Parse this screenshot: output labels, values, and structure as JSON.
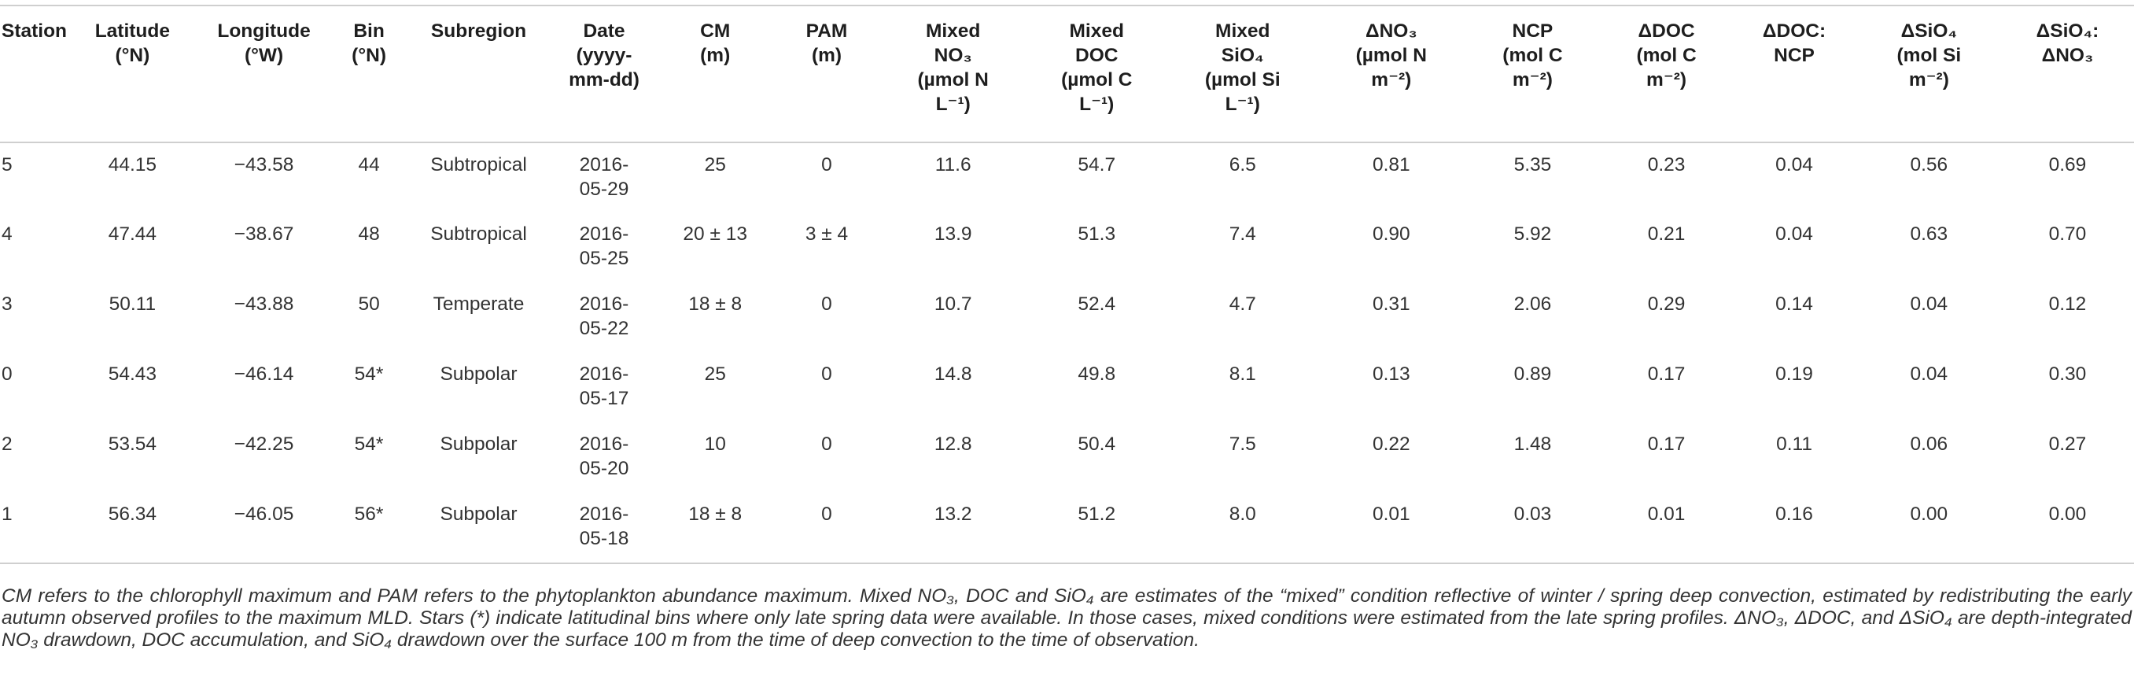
{
  "table": {
    "columns": [
      {
        "l1": "Station",
        "l2": "",
        "l3": "",
        "l4": "",
        "align": "left"
      },
      {
        "l1": "Latitude",
        "l2": "(°N)",
        "l3": "",
        "l4": ""
      },
      {
        "l1": "Longitude",
        "l2": "(°W)",
        "l3": "",
        "l4": ""
      },
      {
        "l1": "Bin",
        "l2": "(°N)",
        "l3": "",
        "l4": ""
      },
      {
        "l1": "Subregion",
        "l2": "",
        "l3": "",
        "l4": ""
      },
      {
        "l1": "Date",
        "l2": "(yyyy-",
        "l3": "mm-dd)",
        "l4": ""
      },
      {
        "l1": "CM",
        "l2": "(m)",
        "l3": "",
        "l4": ""
      },
      {
        "l1": "PAM",
        "l2": "(m)",
        "l3": "",
        "l4": ""
      },
      {
        "l1": "Mixed",
        "l2": "NO₃",
        "l3": "(µmol N",
        "l4": "L⁻¹)"
      },
      {
        "l1": "Mixed",
        "l2": "DOC",
        "l3": "(µmol C",
        "l4": "L⁻¹)"
      },
      {
        "l1": "Mixed",
        "l2": "SiO₄",
        "l3": "(µmol Si",
        "l4": "L⁻¹)"
      },
      {
        "l1": "ΔNO₃",
        "l2": "(µmol N",
        "l3": "m⁻²)",
        "l4": ""
      },
      {
        "l1": "NCP",
        "l2": "(mol C",
        "l3": "m⁻²)",
        "l4": ""
      },
      {
        "l1": "ΔDOC",
        "l2": "(mol C",
        "l3": "m⁻²)",
        "l4": ""
      },
      {
        "l1": "ΔDOC:",
        "l2": "NCP",
        "l3": "",
        "l4": ""
      },
      {
        "l1": "ΔSiO₄",
        "l2": "(mol Si",
        "l3": "m⁻²)",
        "l4": ""
      },
      {
        "l1": "ΔSiO₄:",
        "l2": "ΔNO₃",
        "l3": "",
        "l4": ""
      }
    ],
    "rows": [
      {
        "station": "5",
        "lat": "44.15",
        "lon": "−43.58",
        "bin": "44",
        "subregion": "Subtropical",
        "date1": "2016-",
        "date2": "05-29",
        "cm": "25",
        "pam": "0",
        "mixed_no3": "11.6",
        "mixed_doc": "54.7",
        "mixed_sio4": "6.5",
        "d_no3": "0.81",
        "ncp": "5.35",
        "d_doc": "0.23",
        "doc_ncp": "0.04",
        "d_sio4": "0.56",
        "sio4_no3": "0.69"
      },
      {
        "station": "4",
        "lat": "47.44",
        "lon": "−38.67",
        "bin": "48",
        "subregion": "Subtropical",
        "date1": "2016-",
        "date2": "05-25",
        "cm": "20 ± 13",
        "pam": "3 ± 4",
        "mixed_no3": "13.9",
        "mixed_doc": "51.3",
        "mixed_sio4": "7.4",
        "d_no3": "0.90",
        "ncp": "5.92",
        "d_doc": "0.21",
        "doc_ncp": "0.04",
        "d_sio4": "0.63",
        "sio4_no3": "0.70"
      },
      {
        "station": "3",
        "lat": "50.11",
        "lon": "−43.88",
        "bin": "50",
        "subregion": "Temperate",
        "date1": "2016-",
        "date2": "05-22",
        "cm": "18 ± 8",
        "pam": "0",
        "mixed_no3": "10.7",
        "mixed_doc": "52.4",
        "mixed_sio4": "4.7",
        "d_no3": "0.31",
        "ncp": "2.06",
        "d_doc": "0.29",
        "doc_ncp": "0.14",
        "d_sio4": "0.04",
        "sio4_no3": "0.12"
      },
      {
        "station": "0",
        "lat": "54.43",
        "lon": "−46.14",
        "bin": "54*",
        "subregion": "Subpolar",
        "date1": "2016-",
        "date2": "05-17",
        "cm": "25",
        "pam": "0",
        "mixed_no3": "14.8",
        "mixed_doc": "49.8",
        "mixed_sio4": "8.1",
        "d_no3": "0.13",
        "ncp": "0.89",
        "d_doc": "0.17",
        "doc_ncp": "0.19",
        "d_sio4": "0.04",
        "sio4_no3": "0.30"
      },
      {
        "station": "2",
        "lat": "53.54",
        "lon": "−42.25",
        "bin": "54*",
        "subregion": "Subpolar",
        "date1": "2016-",
        "date2": "05-20",
        "cm": "10",
        "pam": "0",
        "mixed_no3": "12.8",
        "mixed_doc": "50.4",
        "mixed_sio4": "7.5",
        "d_no3": "0.22",
        "ncp": "1.48",
        "d_doc": "0.17",
        "doc_ncp": "0.11",
        "d_sio4": "0.06",
        "sio4_no3": "0.27"
      },
      {
        "station": "1",
        "lat": "56.34",
        "lon": "−46.05",
        "bin": "56*",
        "subregion": "Subpolar",
        "date1": "2016-",
        "date2": "05-18",
        "cm": "18 ± 8",
        "pam": "0",
        "mixed_no3": "13.2",
        "mixed_doc": "51.2",
        "mixed_sio4": "8.0",
        "d_no3": "0.01",
        "ncp": "0.03",
        "d_doc": "0.01",
        "doc_ncp": "0.16",
        "d_sio4": "0.00",
        "sio4_no3": "0.00"
      }
    ]
  },
  "footnote": "CM refers to the chlorophyll maximum and PAM refers to the phytoplankton abundance maximum. Mixed NO₃, DOC and SiO₄ are estimates of the “mixed” condition reflective of winter / spring deep convection, estimated by redistributing the early autumn observed profiles to the maximum MLD. Stars (*) indicate latitudinal bins where only late spring data were available. In those cases, mixed conditions were estimated from the late spring profiles. ΔNO₃, ΔDOC, and ΔSiO₄ are depth-integrated NO₃ drawdown, DOC accumulation, and SiO₄ drawdown over the surface 100 m from the time of deep convection to the time of observation."
}
